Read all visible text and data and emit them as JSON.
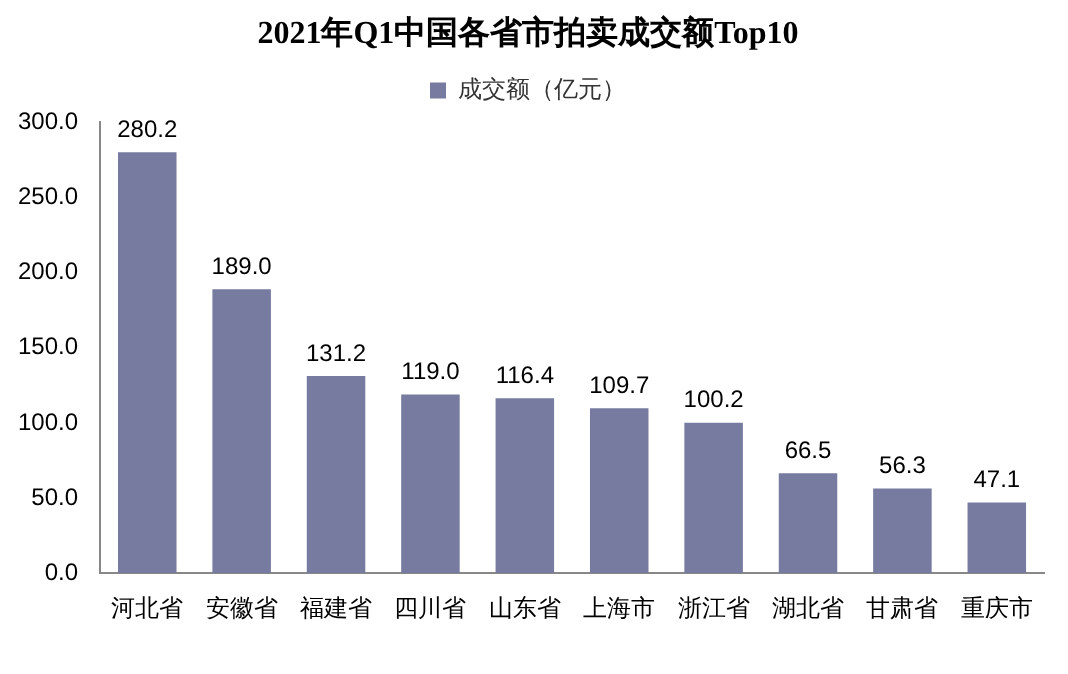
{
  "chart_data": {
    "type": "bar",
    "title": "2021年Q1中国各省市拍卖成交额Top10",
    "categories": [
      "河北省",
      "安徽省",
      "福建省",
      "四川省",
      "山东省",
      "上海市",
      "浙江省",
      "湖北省",
      "甘肃省",
      "重庆市"
    ],
    "series": [
      {
        "name": "成交额（亿元）",
        "color": "#777b9f",
        "values": [
          280.2,
          189.0,
          131.2,
          119.0,
          116.4,
          109.7,
          100.2,
          66.5,
          56.3,
          47.1
        ],
        "value_labels": [
          "280.2",
          "189.0",
          "131.2",
          "119.0",
          "116.4",
          "109.7",
          "100.2",
          "66.5",
          "56.3",
          "47.1"
        ]
      }
    ],
    "ylim": [
      0,
      300
    ],
    "yticks": [
      {
        "value": 0,
        "label": "0.0"
      },
      {
        "value": 50,
        "label": "50.0"
      },
      {
        "value": 100,
        "label": "100.0"
      },
      {
        "value": 150,
        "label": "150.0"
      },
      {
        "value": 200,
        "label": "200.0"
      },
      {
        "value": 250,
        "label": "250.0"
      },
      {
        "value": 300,
        "label": "300.0"
      }
    ],
    "grid": false,
    "legend": "top"
  }
}
